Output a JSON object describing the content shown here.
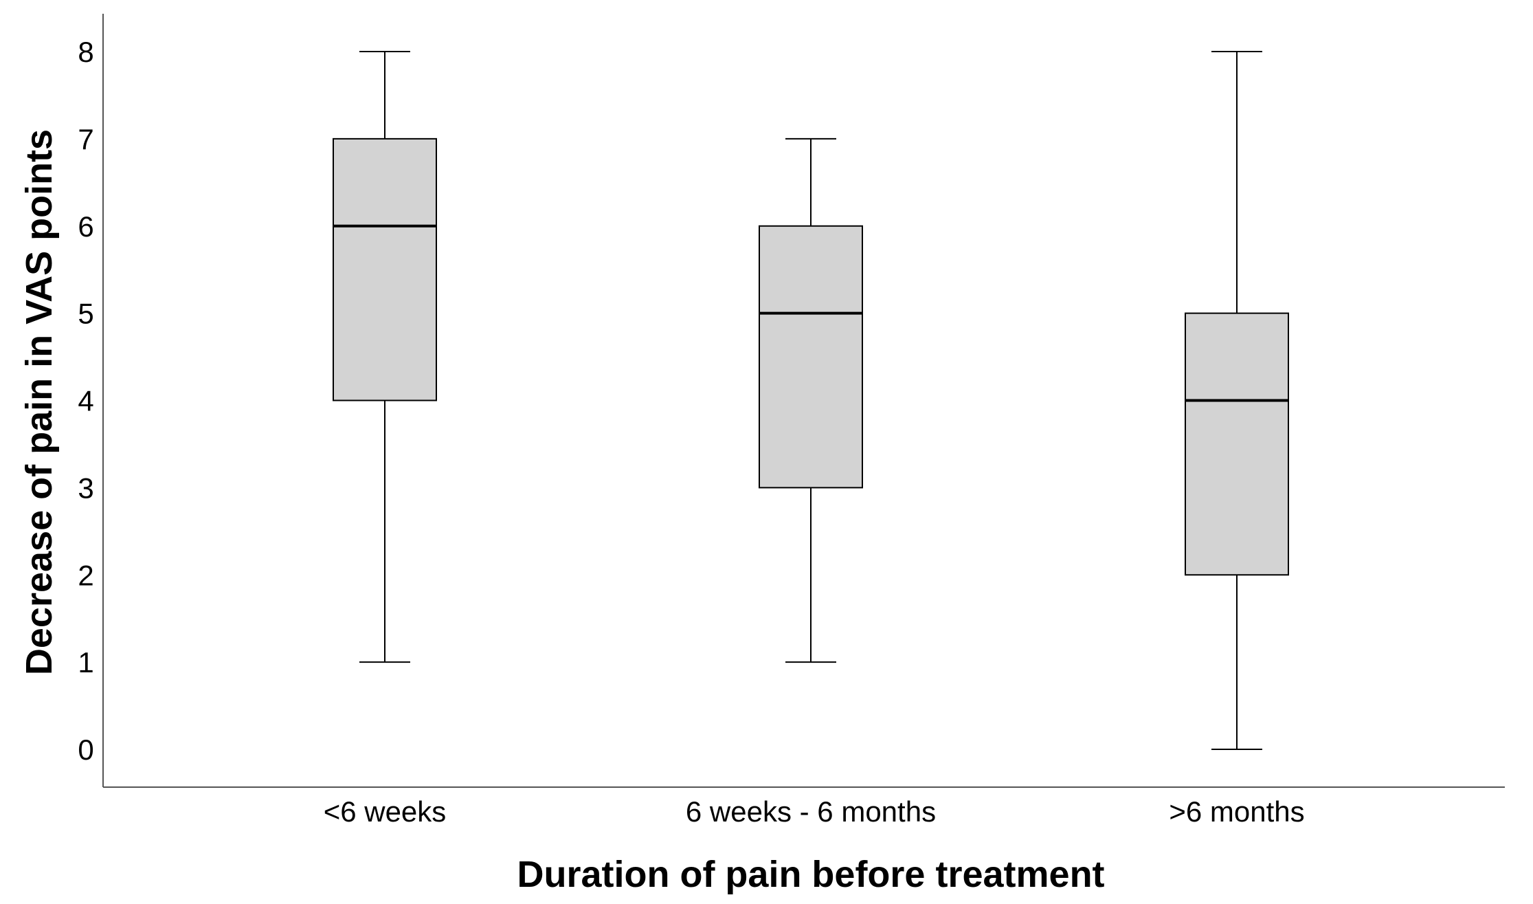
{
  "chart_data": {
    "type": "boxplot",
    "title": "",
    "xlabel": "Duration of pain before treatment",
    "ylabel": "Decrease of pain in VAS points",
    "ylim": [
      0,
      8
    ],
    "yticks": [
      "0",
      "1",
      "2",
      "3",
      "4",
      "5",
      "6",
      "7",
      "8"
    ],
    "grid": false,
    "box_color": "#d3d3d3",
    "categories": [
      "<6 weeks",
      "6 weeks - 6 months",
      ">6 months"
    ],
    "boxes": [
      {
        "category": "<6 weeks",
        "min": 1,
        "q1": 4,
        "median": 6,
        "q3": 7,
        "max": 8
      },
      {
        "category": "6 weeks - 6 months",
        "min": 1,
        "q1": 3,
        "median": 5,
        "q3": 6,
        "max": 7
      },
      {
        "category": ">6 months",
        "min": 0,
        "q1": 2,
        "median": 4,
        "q3": 5,
        "max": 8
      }
    ]
  }
}
